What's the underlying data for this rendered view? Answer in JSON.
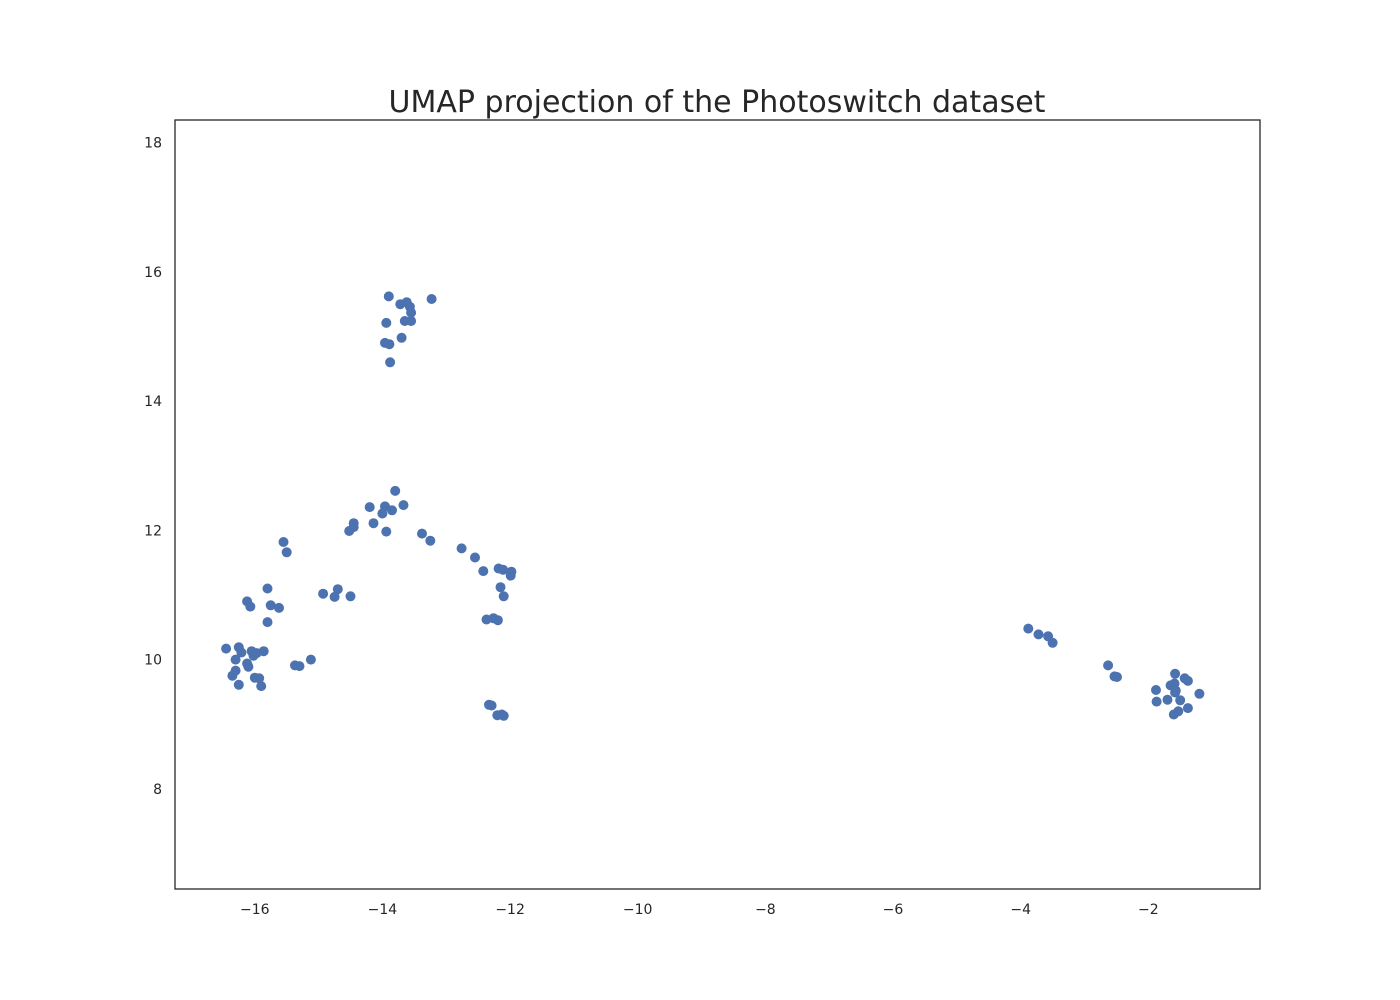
{
  "chart_data": {
    "type": "scatter",
    "title": "UMAP projection of the Photoswitch dataset",
    "xlabel": "",
    "ylabel": "",
    "xlim": [
      -17.25,
      -0.25
    ],
    "ylim": [
      6.45,
      18.35
    ],
    "xticks": [
      -16,
      -14,
      -12,
      -10,
      -8,
      -6,
      -4,
      -2
    ],
    "xtick_labels": [
      "−16",
      "−14",
      "−12",
      "−10",
      "−8",
      "−6",
      "−4",
      "−2"
    ],
    "yticks": [
      8,
      10,
      12,
      14,
      16,
      18
    ],
    "ytick_labels": [
      "8",
      "10",
      "12",
      "14",
      "16",
      "18"
    ],
    "grid": false,
    "legend": "none",
    "marker_color": "#4c72b0",
    "frame_color": "#262626",
    "series": [
      {
        "points": [
          [
            -13.9,
            15.62
          ],
          [
            -13.72,
            15.5
          ],
          [
            -13.62,
            15.53
          ],
          [
            -13.57,
            15.46
          ],
          [
            -13.23,
            15.58
          ],
          [
            -13.55,
            15.37
          ],
          [
            -13.65,
            15.24
          ],
          [
            -13.55,
            15.24
          ],
          [
            -13.94,
            15.21
          ],
          [
            -13.7,
            14.98
          ],
          [
            -13.96,
            14.9
          ],
          [
            -13.89,
            14.88
          ],
          [
            -13.88,
            14.6
          ],
          [
            -13.8,
            12.61
          ],
          [
            -14.2,
            12.36
          ],
          [
            -13.96,
            12.37
          ],
          [
            -13.67,
            12.39
          ],
          [
            -13.85,
            12.31
          ],
          [
            -14.0,
            12.26
          ],
          [
            -14.45,
            12.11
          ],
          [
            -14.14,
            12.11
          ],
          [
            -14.45,
            12.05
          ],
          [
            -14.52,
            11.99
          ],
          [
            -13.94,
            11.98
          ],
          [
            -13.38,
            11.95
          ],
          [
            -13.25,
            11.84
          ],
          [
            -12.76,
            11.72
          ],
          [
            -12.55,
            11.58
          ],
          [
            -12.42,
            11.37
          ],
          [
            -12.18,
            11.41
          ],
          [
            -12.11,
            11.39
          ],
          [
            -11.98,
            11.36
          ],
          [
            -11.99,
            11.3
          ],
          [
            -12.15,
            11.12
          ],
          [
            -12.1,
            10.98
          ],
          [
            -12.37,
            10.62
          ],
          [
            -12.26,
            10.64
          ],
          [
            -12.19,
            10.61
          ],
          [
            -12.33,
            9.3
          ],
          [
            -12.29,
            9.29
          ],
          [
            -12.2,
            9.14
          ],
          [
            -12.13,
            9.15
          ],
          [
            -12.1,
            9.13
          ],
          [
            -15.55,
            11.82
          ],
          [
            -15.5,
            11.66
          ],
          [
            -14.93,
            11.02
          ],
          [
            -14.7,
            11.09
          ],
          [
            -14.75,
            10.97
          ],
          [
            -14.5,
            10.98
          ],
          [
            -15.8,
            11.1
          ],
          [
            -16.12,
            10.9
          ],
          [
            -16.07,
            10.82
          ],
          [
            -15.75,
            10.84
          ],
          [
            -15.62,
            10.8
          ],
          [
            -15.8,
            10.58
          ],
          [
            -16.45,
            10.17
          ],
          [
            -16.25,
            10.19
          ],
          [
            -16.21,
            10.11
          ],
          [
            -16.05,
            10.13
          ],
          [
            -15.97,
            10.1
          ],
          [
            -15.86,
            10.13
          ],
          [
            -16.02,
            10.06
          ],
          [
            -16.3,
            10.0
          ],
          [
            -16.12,
            9.94
          ],
          [
            -16.1,
            9.89
          ],
          [
            -16.3,
            9.83
          ],
          [
            -16.35,
            9.75
          ],
          [
            -16.0,
            9.72
          ],
          [
            -15.93,
            9.71
          ],
          [
            -16.25,
            9.61
          ],
          [
            -15.9,
            9.59
          ],
          [
            -15.37,
            9.91
          ],
          [
            -15.3,
            9.9
          ],
          [
            -15.12,
            10.0
          ],
          [
            -3.88,
            10.48
          ],
          [
            -3.72,
            10.39
          ],
          [
            -3.57,
            10.36
          ],
          [
            -3.5,
            10.26
          ],
          [
            -2.63,
            9.91
          ],
          [
            -2.53,
            9.74
          ],
          [
            -2.49,
            9.73
          ],
          [
            -1.58,
            9.78
          ],
          [
            -1.65,
            9.6
          ],
          [
            -1.59,
            9.63
          ],
          [
            -1.43,
            9.71
          ],
          [
            -1.38,
            9.67
          ],
          [
            -1.88,
            9.53
          ],
          [
            -1.58,
            9.49
          ],
          [
            -1.57,
            9.52
          ],
          [
            -1.2,
            9.47
          ],
          [
            -1.7,
            9.38
          ],
          [
            -1.87,
            9.35
          ],
          [
            -1.5,
            9.37
          ],
          [
            -1.38,
            9.25
          ],
          [
            -1.53,
            9.2
          ],
          [
            -1.6,
            9.15
          ]
        ]
      }
    ]
  }
}
